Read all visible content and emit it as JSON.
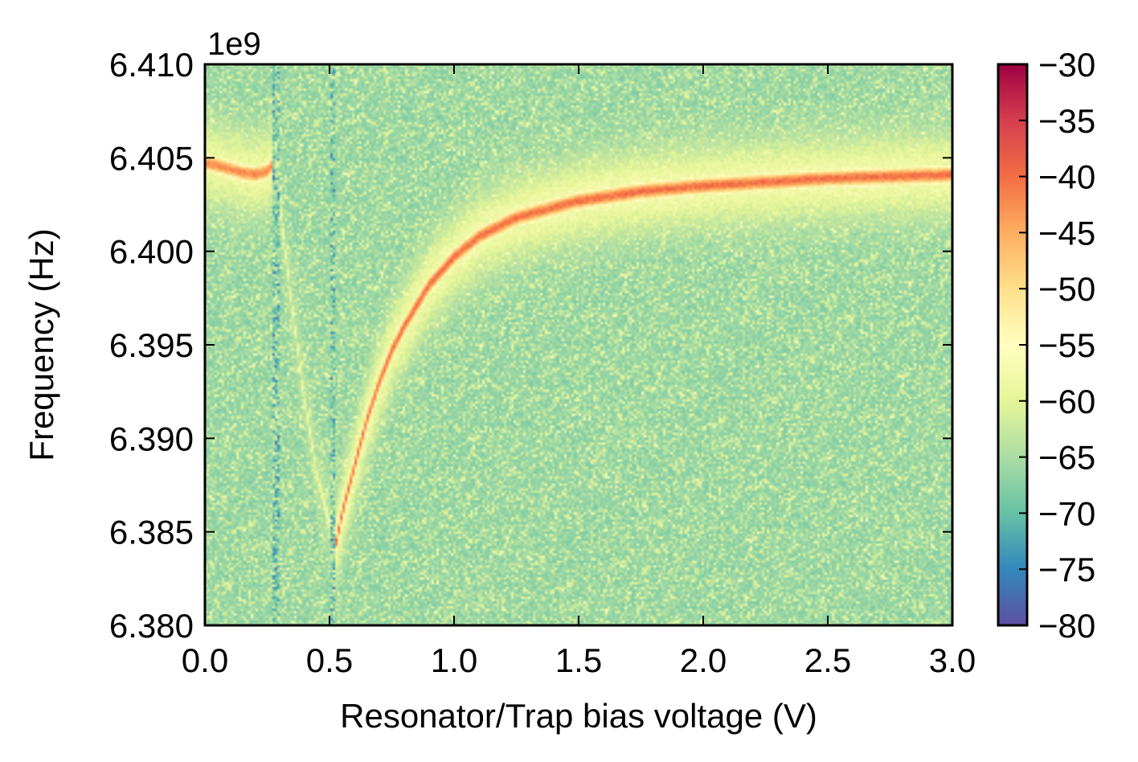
{
  "chart_data": {
    "type": "heatmap",
    "title": "",
    "xlabel": "Resonator/Trap bias voltage (V)",
    "ylabel": "Frequency (Hz)",
    "y_offset_label": "1e9",
    "xlim": [
      0.0,
      3.0
    ],
    "ylim": [
      6.38,
      6.41
    ],
    "x_ticks": [
      "0.0",
      "0.5",
      "1.0",
      "1.5",
      "2.0",
      "2.5",
      "3.0"
    ],
    "x_tick_values": [
      0.0,
      0.5,
      1.0,
      1.5,
      2.0,
      2.5,
      3.0
    ],
    "y_ticks": [
      "6.380",
      "6.385",
      "6.390",
      "6.395",
      "6.400",
      "6.405",
      "6.410"
    ],
    "y_tick_values": [
      6.38,
      6.385,
      6.39,
      6.395,
      6.4,
      6.405,
      6.41
    ],
    "colorbar": {
      "range": [
        -80,
        -30
      ],
      "ticks": [
        "−80",
        "−75",
        "−70",
        "−65",
        "−60",
        "−55",
        "−50",
        "−45",
        "−40",
        "−35",
        "−30"
      ],
      "tick_values": [
        -80,
        -75,
        -70,
        -65,
        -60,
        -55,
        -50,
        -45,
        -40,
        -35,
        -30
      ],
      "colormap": "Spectral_r",
      "colors": [
        "#5e4fa2",
        "#3288bd",
        "#66c2a5",
        "#abdda4",
        "#e6f598",
        "#ffffbf",
        "#fee08b",
        "#fdae61",
        "#f46d43",
        "#d53e4f",
        "#9e0142"
      ]
    },
    "background_level": -67,
    "resonance_branches": [
      {
        "x": [
          0.0,
          0.05,
          0.1,
          0.15,
          0.2,
          0.25,
          0.27
        ],
        "y": [
          6.4047,
          6.4046,
          6.4044,
          6.4042,
          6.4041,
          6.4043,
          6.4046
        ],
        "peak_level": -42
      },
      {
        "x": [
          0.52,
          0.55,
          0.6,
          0.65,
          0.7,
          0.75,
          0.8,
          0.9,
          1.0,
          1.1,
          1.25,
          1.5,
          1.75,
          2.0,
          2.5,
          3.0
        ],
        "y": [
          6.384,
          6.386,
          6.3885,
          6.391,
          6.393,
          6.3947,
          6.396,
          6.3982,
          6.3997,
          6.4008,
          6.4018,
          6.4027,
          6.4032,
          6.4035,
          6.4039,
          6.4041
        ],
        "peak_level": -40
      },
      {
        "x": [
          0.3,
          0.35,
          0.4,
          0.45,
          0.5
        ],
        "y": [
          6.4025,
          6.397,
          6.392,
          6.388,
          6.3855
        ],
        "peak_level": -58
      }
    ]
  }
}
